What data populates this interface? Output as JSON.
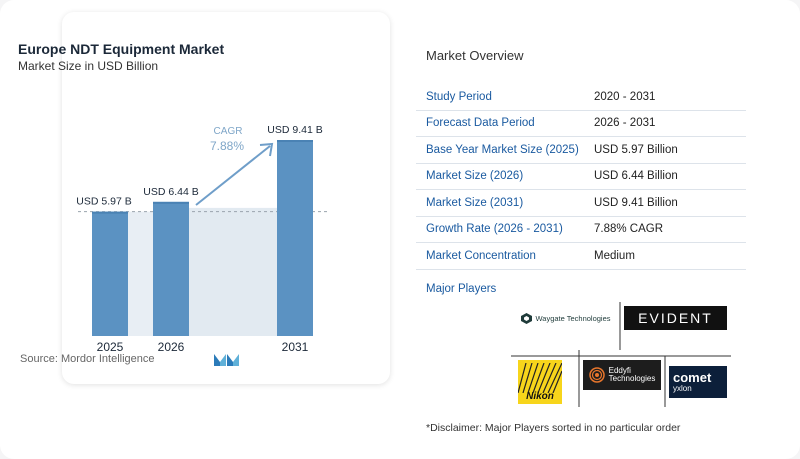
{
  "chart_title": "Europe NDT Equipment Market",
  "chart_subtitle": "Market Size in USD Billion",
  "source": "Source:  Mordor Intelligence",
  "chart_data": {
    "type": "bar",
    "title": "Europe NDT Equipment Market",
    "subtitle": "Market Size in USD Billion",
    "categories": [
      "2025",
      "2026",
      "2031"
    ],
    "values": [
      5.97,
      6.44,
      9.41
    ],
    "value_labels": [
      "USD 5.97 B",
      "USD 6.44 B",
      "USD 9.41 B"
    ],
    "cagr_label": "CAGR",
    "cagr_value": "7.88%",
    "ylim": [
      0,
      9.41
    ],
    "grid": false,
    "colors": {
      "bar": "#5b92c2",
      "bar_top": "#4a82b4",
      "band": "#e2eaf1",
      "arrow": "#6f9ec9",
      "cagr_text": "#7fa6c8"
    }
  },
  "overview": {
    "title": "Market Overview",
    "rows": [
      {
        "label": "Study Period",
        "value": "2020 - 2031"
      },
      {
        "label": "Forecast Data Period",
        "value": "2026 - 2031"
      },
      {
        "label": "Base Year Market Size (2025)",
        "value": "USD 5.97 Billion"
      },
      {
        "label": "Market Size (2026)",
        "value": "USD 6.44 Billion"
      },
      {
        "label": "Market Size (2031)",
        "value": "USD 9.41 Billion"
      },
      {
        "label": "Growth Rate (2026 - 2031)",
        "value": "7.88% CAGR"
      },
      {
        "label": "Market Concentration",
        "value": "Medium"
      }
    ]
  },
  "players": {
    "title": "Major Players",
    "logos": {
      "waygate": "Waygate Technologies",
      "evident": "EVIDENT",
      "nikon": "Nikon",
      "eddyfi_1": "Eddyfi",
      "eddyfi_2": "Technologies",
      "comet_1": "comet",
      "comet_2": "yxlon"
    }
  },
  "disclaimer": "*Disclaimer: Major Players sorted in no particular order"
}
